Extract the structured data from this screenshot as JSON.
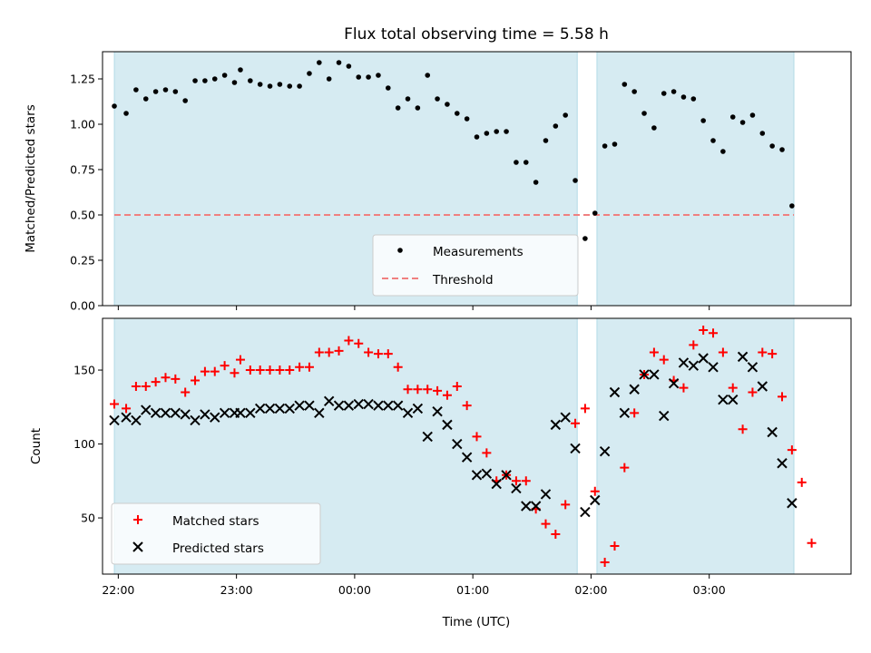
{
  "figure": {
    "title": "Flux total observing time = 5.58 h"
  },
  "chart_data": [
    {
      "type": "scatter",
      "panel": "top",
      "title": "Flux total observing time = 5.58 h",
      "xlabel": "",
      "ylabel": "Matched/Predicted stars",
      "xlim": [
        "21:52",
        "04:12"
      ],
      "ylim": [
        0,
        1.4
      ],
      "yticks": [
        0.0,
        0.25,
        0.5,
        0.75,
        1.0,
        1.25
      ],
      "ytick_labels": [
        "0.00",
        "0.25",
        "0.50",
        "0.75",
        "1.00",
        "1.25"
      ],
      "xticks": [
        "22:00",
        "23:00",
        "00:00",
        "01:00",
        "02:00",
        "03:00"
      ],
      "grid": false,
      "legend_position": "lower-center",
      "observing_windows": [
        {
          "start": "21:58",
          "end": "01:53"
        },
        {
          "start": "02:03",
          "end": "03:43"
        }
      ],
      "threshold": {
        "name": "Threshold",
        "value": 0.5,
        "color": "#f08080",
        "style": "dashed"
      },
      "series": [
        {
          "name": "Measurements",
          "marker": "dot",
          "color": "#000000",
          "points": [
            [
              "21:58",
              1.1
            ],
            [
              "22:04",
              1.06
            ],
            [
              "22:09",
              1.19
            ],
            [
              "22:14",
              1.14
            ],
            [
              "22:19",
              1.18
            ],
            [
              "22:24",
              1.19
            ],
            [
              "22:29",
              1.18
            ],
            [
              "22:34",
              1.13
            ],
            [
              "22:39",
              1.24
            ],
            [
              "22:44",
              1.24
            ],
            [
              "22:49",
              1.25
            ],
            [
              "22:54",
              1.27
            ],
            [
              "22:59",
              1.23
            ],
            [
              "23:02",
              1.3
            ],
            [
              "23:07",
              1.24
            ],
            [
              "23:12",
              1.22
            ],
            [
              "23:17",
              1.21
            ],
            [
              "23:22",
              1.22
            ],
            [
              "23:27",
              1.21
            ],
            [
              "23:32",
              1.21
            ],
            [
              "23:37",
              1.28
            ],
            [
              "23:42",
              1.34
            ],
            [
              "23:47",
              1.25
            ],
            [
              "23:52",
              1.34
            ],
            [
              "23:57",
              1.32
            ],
            [
              "00:02",
              1.26
            ],
            [
              "00:07",
              1.26
            ],
            [
              "00:12",
              1.27
            ],
            [
              "00:17",
              1.2
            ],
            [
              "00:22",
              1.09
            ],
            [
              "00:27",
              1.14
            ],
            [
              "00:32",
              1.09
            ],
            [
              "00:37",
              1.27
            ],
            [
              "00:42",
              1.14
            ],
            [
              "00:47",
              1.11
            ],
            [
              "00:52",
              1.06
            ],
            [
              "00:57",
              1.03
            ],
            [
              "01:02",
              0.93
            ],
            [
              "01:07",
              0.95
            ],
            [
              "01:12",
              0.96
            ],
            [
              "01:17",
              0.96
            ],
            [
              "01:22",
              0.79
            ],
            [
              "01:27",
              0.79
            ],
            [
              "01:32",
              0.68
            ],
            [
              "01:37",
              0.91
            ],
            [
              "01:42",
              0.99
            ],
            [
              "01:47",
              1.05
            ],
            [
              "01:52",
              0.69
            ],
            [
              "01:57",
              0.37
            ],
            [
              "02:02",
              0.51
            ],
            [
              "02:07",
              0.88
            ],
            [
              "02:12",
              0.89
            ],
            [
              "02:17",
              1.22
            ],
            [
              "02:22",
              1.18
            ],
            [
              "02:27",
              1.06
            ],
            [
              "02:32",
              0.98
            ],
            [
              "02:37",
              1.17
            ],
            [
              "02:42",
              1.18
            ],
            [
              "02:47",
              1.15
            ],
            [
              "02:52",
              1.14
            ],
            [
              "02:57",
              1.02
            ],
            [
              "03:02",
              0.91
            ],
            [
              "03:07",
              0.85
            ],
            [
              "03:12",
              1.04
            ],
            [
              "03:17",
              1.01
            ],
            [
              "03:22",
              1.05
            ],
            [
              "03:27",
              0.95
            ],
            [
              "03:32",
              0.88
            ],
            [
              "03:37",
              0.86
            ],
            [
              "03:42",
              0.55
            ]
          ]
        }
      ]
    },
    {
      "type": "scatter",
      "panel": "bottom",
      "title": "",
      "xlabel": "Time (UTC)",
      "ylabel": "Count",
      "xlim": [
        "21:52",
        "04:12"
      ],
      "ylim": [
        12,
        185
      ],
      "yticks": [
        50,
        100,
        150
      ],
      "ytick_labels": [
        "50",
        "100",
        "150"
      ],
      "xticks": [
        "22:00",
        "23:00",
        "00:00",
        "01:00",
        "02:00",
        "03:00"
      ],
      "xtick_labels": [
        "22:00",
        "23:00",
        "00:00",
        "01:00",
        "02:00",
        "03:00"
      ],
      "grid": false,
      "legend_position": "lower-left",
      "observing_windows": [
        {
          "start": "21:58",
          "end": "01:53"
        },
        {
          "start": "02:03",
          "end": "03:43"
        }
      ],
      "series": [
        {
          "name": "Matched stars",
          "marker": "plus",
          "color": "#ff0000",
          "points": [
            [
              "21:58",
              127
            ],
            [
              "22:04",
              124
            ],
            [
              "22:09",
              139
            ],
            [
              "22:14",
              139
            ],
            [
              "22:19",
              142
            ],
            [
              "22:24",
              145
            ],
            [
              "22:29",
              144
            ],
            [
              "22:34",
              135
            ],
            [
              "22:39",
              143
            ],
            [
              "22:44",
              149
            ],
            [
              "22:49",
              149
            ],
            [
              "22:54",
              153
            ],
            [
              "22:59",
              148
            ],
            [
              "23:02",
              157
            ],
            [
              "23:07",
              150
            ],
            [
              "23:12",
              150
            ],
            [
              "23:17",
              150
            ],
            [
              "23:22",
              150
            ],
            [
              "23:27",
              150
            ],
            [
              "23:32",
              152
            ],
            [
              "23:37",
              152
            ],
            [
              "23:42",
              162
            ],
            [
              "23:47",
              162
            ],
            [
              "23:52",
              163
            ],
            [
              "23:57",
              170
            ],
            [
              "00:02",
              168
            ],
            [
              "00:07",
              162
            ],
            [
              "00:12",
              161
            ],
            [
              "00:17",
              161
            ],
            [
              "00:22",
              152
            ],
            [
              "00:27",
              137
            ],
            [
              "00:32",
              137
            ],
            [
              "00:37",
              137
            ],
            [
              "00:42",
              136
            ],
            [
              "00:47",
              133
            ],
            [
              "00:52",
              139
            ],
            [
              "00:57",
              126
            ],
            [
              "01:02",
              105
            ],
            [
              "01:07",
              94
            ],
            [
              "01:12",
              75
            ],
            [
              "01:17",
              79
            ],
            [
              "01:22",
              75
            ],
            [
              "01:27",
              75
            ],
            [
              "01:32",
              56
            ],
            [
              "01:37",
              46
            ],
            [
              "01:42",
              39
            ],
            [
              "01:47",
              59
            ],
            [
              "01:52",
              114
            ],
            [
              "01:57",
              124
            ],
            [
              "02:02",
              68
            ],
            [
              "02:07",
              20
            ],
            [
              "02:12",
              31
            ],
            [
              "02:17",
              84
            ],
            [
              "02:22",
              121
            ],
            [
              "02:27",
              147
            ],
            [
              "02:32",
              162
            ],
            [
              "02:37",
              157
            ],
            [
              "02:42",
              143
            ],
            [
              "02:47",
              138
            ],
            [
              "02:52",
              167
            ],
            [
              "02:57",
              177
            ],
            [
              "03:02",
              175
            ],
            [
              "03:07",
              162
            ],
            [
              "03:12",
              138
            ],
            [
              "03:17",
              110
            ],
            [
              "03:22",
              135
            ],
            [
              "03:27",
              162
            ],
            [
              "03:32",
              161
            ],
            [
              "03:37",
              132
            ],
            [
              "03:42",
              96
            ],
            [
              "03:47",
              74
            ],
            [
              "03:52",
              33
            ]
          ]
        },
        {
          "name": "Predicted stars",
          "marker": "x",
          "color": "#000000",
          "points": [
            [
              "21:58",
              116
            ],
            [
              "22:04",
              118
            ],
            [
              "22:09",
              116
            ],
            [
              "22:14",
              123
            ],
            [
              "22:19",
              121
            ],
            [
              "22:24",
              121
            ],
            [
              "22:29",
              121
            ],
            [
              "22:34",
              120
            ],
            [
              "22:39",
              116
            ],
            [
              "22:44",
              120
            ],
            [
              "22:49",
              118
            ],
            [
              "22:54",
              121
            ],
            [
              "22:59",
              121
            ],
            [
              "23:02",
              121
            ],
            [
              "23:07",
              121
            ],
            [
              "23:12",
              124
            ],
            [
              "23:17",
              124
            ],
            [
              "23:22",
              124
            ],
            [
              "23:27",
              124
            ],
            [
              "23:32",
              126
            ],
            [
              "23:37",
              126
            ],
            [
              "23:42",
              121
            ],
            [
              "23:47",
              129
            ],
            [
              "23:52",
              126
            ],
            [
              "23:57",
              126
            ],
            [
              "00:02",
              127
            ],
            [
              "00:07",
              127
            ],
            [
              "00:12",
              126
            ],
            [
              "00:17",
              126
            ],
            [
              "00:22",
              126
            ],
            [
              "00:27",
              121
            ],
            [
              "00:32",
              124
            ],
            [
              "00:37",
              105
            ],
            [
              "00:42",
              122
            ],
            [
              "00:47",
              113
            ],
            [
              "00:52",
              100
            ],
            [
              "00:57",
              91
            ],
            [
              "01:02",
              79
            ],
            [
              "01:07",
              80
            ],
            [
              "01:12",
              73
            ],
            [
              "01:17",
              79
            ],
            [
              "01:22",
              70
            ],
            [
              "01:27",
              58
            ],
            [
              "01:32",
              58
            ],
            [
              "01:37",
              66
            ],
            [
              "01:42",
              113
            ],
            [
              "01:47",
              118
            ],
            [
              "01:52",
              97
            ],
            [
              "01:57",
              54
            ],
            [
              "02:02",
              62
            ],
            [
              "02:07",
              95
            ],
            [
              "02:12",
              135
            ],
            [
              "02:17",
              121
            ],
            [
              "02:22",
              137
            ],
            [
              "02:27",
              147
            ],
            [
              "02:32",
              147
            ],
            [
              "02:37",
              119
            ],
            [
              "02:42",
              141
            ],
            [
              "02:47",
              155
            ],
            [
              "02:52",
              153
            ],
            [
              "02:57",
              158
            ],
            [
              "03:02",
              152
            ],
            [
              "03:07",
              130
            ],
            [
              "03:12",
              130
            ],
            [
              "03:17",
              159
            ],
            [
              "03:22",
              152
            ],
            [
              "03:27",
              139
            ],
            [
              "03:32",
              108
            ],
            [
              "03:37",
              87
            ],
            [
              "03:42",
              60
            ]
          ]
        }
      ]
    }
  ]
}
